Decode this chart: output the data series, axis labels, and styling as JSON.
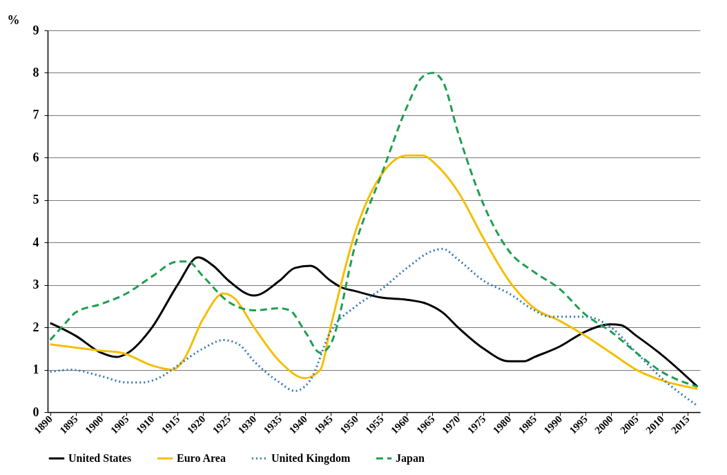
{
  "chart_data": {
    "type": "line",
    "ylabel": "%",
    "xlim": [
      1889.5,
      2017.5
    ],
    "xticks": [
      1890,
      1895,
      1900,
      1905,
      1910,
      1915,
      1920,
      1925,
      1930,
      1935,
      1940,
      1945,
      1950,
      1955,
      1960,
      1965,
      1970,
      1975,
      1980,
      1985,
      1990,
      1995,
      2000,
      2005,
      2010,
      2015
    ],
    "ylim": [
      0,
      9
    ],
    "yticks": [
      0,
      1,
      2,
      3,
      4,
      5,
      6,
      7,
      8,
      9
    ],
    "grid": "y",
    "legend": "bottom",
    "series": [
      {
        "name": "United States",
        "color": "#000000",
        "line_style": "solid",
        "x": [
          1890,
          1895,
          1900,
          1903,
          1905,
          1910,
          1915,
          1919,
          1922,
          1925,
          1930,
          1935,
          1938,
          1941,
          1945,
          1947,
          1950,
          1955,
          1960,
          1964,
          1967,
          1970,
          1975,
          1980,
          1983,
          1985,
          1990,
          1995,
          2000,
          2002,
          2005,
          2010,
          2017
        ],
        "values": [
          2.1,
          1.8,
          1.4,
          1.3,
          1.38,
          2.0,
          3.0,
          3.65,
          3.45,
          3.1,
          2.75,
          3.1,
          3.4,
          3.45,
          3.1,
          2.95,
          2.85,
          2.7,
          2.65,
          2.55,
          2.35,
          2.0,
          1.5,
          1.2,
          1.2,
          1.3,
          1.55,
          1.9,
          2.07,
          2.05,
          1.8,
          1.35,
          0.6
        ]
      },
      {
        "name": "Euro Area",
        "color": "#f5be00",
        "line_style": "solid",
        "x": [
          1890,
          1895,
          1900,
          1904,
          1910,
          1914,
          1916,
          1920,
          1924,
          1926,
          1930,
          1935,
          1940,
          1943,
          1945,
          1950,
          1955,
          1960,
          1963,
          1966,
          1970,
          1975,
          1980,
          1985,
          1990,
          1995,
          2000,
          2005,
          2010,
          2017
        ],
        "values": [
          1.6,
          1.52,
          1.45,
          1.4,
          1.1,
          1.0,
          1.2,
          2.2,
          2.8,
          2.7,
          2.0,
          1.2,
          0.8,
          1.0,
          2.0,
          4.3,
          5.6,
          6.05,
          6.05,
          5.8,
          5.2,
          4.1,
          3.1,
          2.45,
          2.15,
          1.8,
          1.4,
          1.0,
          0.75,
          0.55
        ]
      },
      {
        "name": "United Kingdom",
        "color": "#2e75b6",
        "line_style": "dotted",
        "x": [
          1890,
          1894,
          1900,
          1905,
          1908,
          1912,
          1915,
          1920,
          1924,
          1927,
          1930,
          1935,
          1938,
          1941,
          1945,
          1950,
          1955,
          1960,
          1965,
          1967,
          1970,
          1975,
          1980,
          1985,
          1988,
          1995,
          2000,
          2005,
          2010,
          2017
        ],
        "values": [
          0.95,
          1.0,
          0.85,
          0.7,
          0.7,
          0.85,
          1.1,
          1.5,
          1.7,
          1.6,
          1.2,
          0.7,
          0.5,
          0.75,
          1.9,
          2.5,
          2.9,
          3.4,
          3.8,
          3.85,
          3.6,
          3.1,
          2.8,
          2.4,
          2.25,
          2.25,
          2.0,
          1.4,
          0.8,
          0.15
        ]
      },
      {
        "name": "Japan",
        "color": "#1e9e50",
        "line_style": "dashed",
        "x": [
          1890,
          1893,
          1895,
          1900,
          1905,
          1910,
          1915,
          1917,
          1920,
          1925,
          1930,
          1935,
          1937,
          1940,
          1943,
          1945,
          1950,
          1955,
          1960,
          1963,
          1965,
          1967,
          1970,
          1975,
          1980,
          1985,
          1990,
          1995,
          2000,
          2005,
          2010,
          2017
        ],
        "values": [
          1.7,
          2.1,
          2.35,
          2.55,
          2.8,
          3.2,
          3.55,
          3.55,
          3.2,
          2.6,
          2.4,
          2.45,
          2.4,
          1.9,
          1.4,
          1.6,
          4.0,
          5.6,
          7.2,
          7.9,
          8.0,
          7.8,
          6.6,
          4.9,
          3.8,
          3.3,
          2.9,
          2.3,
          1.9,
          1.4,
          0.95,
          0.6
        ]
      }
    ]
  }
}
